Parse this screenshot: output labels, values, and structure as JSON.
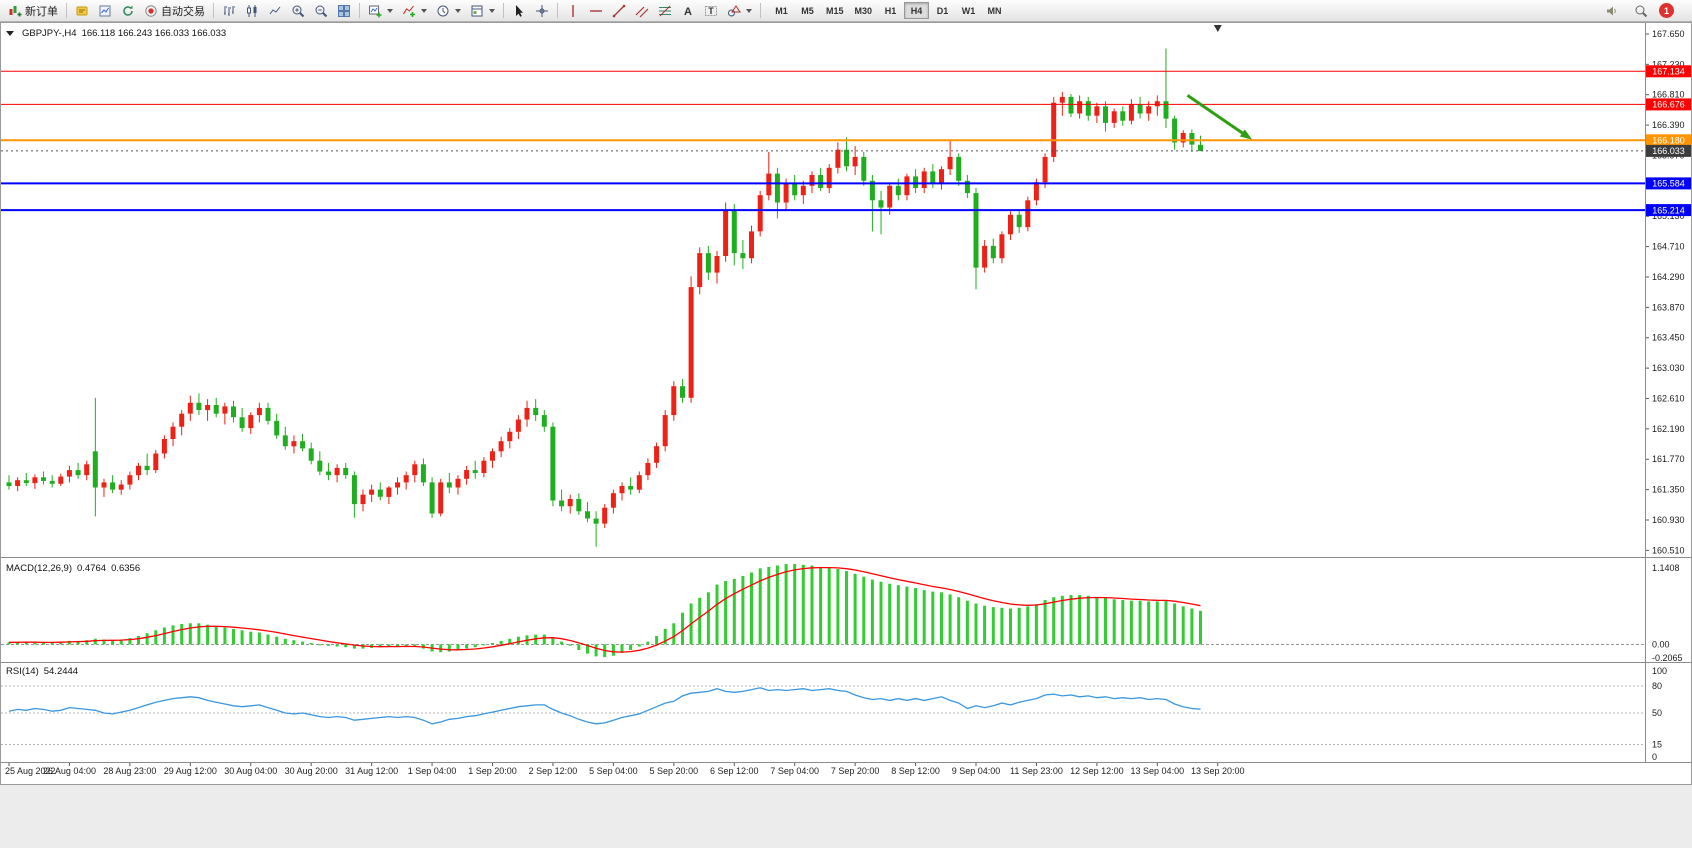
{
  "toolbar": {
    "new_order_label": "新订单",
    "auto_trading_label": "自动交易",
    "timeframes": [
      "M1",
      "M5",
      "M15",
      "M30",
      "H1",
      "H4",
      "D1",
      "W1",
      "MN"
    ],
    "active_timeframe": "H4",
    "notification_count": "1"
  },
  "chart_data": {
    "type": "candlestick",
    "header_symbol": "GBPJPY-,H4",
    "header_ohlc": "166.118 166.243 166.033 166.033",
    "ylim": [
      160.46,
      167.76
    ],
    "price_ticks": [
      167.65,
      167.23,
      166.81,
      166.39,
      165.97,
      165.55,
      165.13,
      164.71,
      164.29,
      163.87,
      163.45,
      163.03,
      162.61,
      162.19,
      161.77,
      161.35,
      160.93,
      160.51
    ],
    "time_labels": [
      "25 Aug 2022",
      "26 Aug 04:00",
      "28 Aug 23:00",
      "29 Aug 12:00",
      "30 Aug 04:00",
      "30 Aug 20:00",
      "31 Aug 12:00",
      "1 Sep 04:00",
      "1 Sep 20:00",
      "2 Sep 12:00",
      "5 Sep 04:00",
      "5 Sep 20:00",
      "6 Sep 12:00",
      "7 Sep 04:00",
      "7 Sep 20:00",
      "8 Sep 12:00",
      "9 Sep 04:00",
      "11 Sep 23:00",
      "12 Sep 12:00",
      "13 Sep 04:00",
      "13 Sep 20:00"
    ],
    "label_every_bars": 7,
    "up_color": "#ee2116",
    "down_color": "#1fae1f",
    "ohlc": [
      [
        161.45,
        161.55,
        161.35,
        161.4
      ],
      [
        161.4,
        161.52,
        161.33,
        161.48
      ],
      [
        161.48,
        161.58,
        161.4,
        161.44
      ],
      [
        161.44,
        161.56,
        161.36,
        161.52
      ],
      [
        161.52,
        161.6,
        161.42,
        161.47
      ],
      [
        161.47,
        161.55,
        161.38,
        161.43
      ],
      [
        161.43,
        161.57,
        161.4,
        161.53
      ],
      [
        161.53,
        161.68,
        161.45,
        161.62
      ],
      [
        161.62,
        161.72,
        161.5,
        161.55
      ],
      [
        161.55,
        161.75,
        161.48,
        161.7
      ],
      [
        161.88,
        162.62,
        160.98,
        161.38
      ],
      [
        161.38,
        161.5,
        161.25,
        161.45
      ],
      [
        161.45,
        161.55,
        161.3,
        161.35
      ],
      [
        161.35,
        161.48,
        161.28,
        161.42
      ],
      [
        161.42,
        161.6,
        161.35,
        161.55
      ],
      [
        161.55,
        161.72,
        161.48,
        161.68
      ],
      [
        161.68,
        161.85,
        161.55,
        161.62
      ],
      [
        161.62,
        161.9,
        161.58,
        161.85
      ],
      [
        161.85,
        162.1,
        161.78,
        162.05
      ],
      [
        162.05,
        162.28,
        161.95,
        162.22
      ],
      [
        162.22,
        162.45,
        162.1,
        162.4
      ],
      [
        162.4,
        162.65,
        162.3,
        162.55
      ],
      [
        162.55,
        162.68,
        162.38,
        162.45
      ],
      [
        162.45,
        162.6,
        162.3,
        162.52
      ],
      [
        162.52,
        162.62,
        162.35,
        162.4
      ],
      [
        162.4,
        162.55,
        162.25,
        162.5
      ],
      [
        162.5,
        162.58,
        162.28,
        162.35
      ],
      [
        162.35,
        162.48,
        162.15,
        162.2
      ],
      [
        162.2,
        162.42,
        162.12,
        162.38
      ],
      [
        162.38,
        162.55,
        162.28,
        162.48
      ],
      [
        162.48,
        162.55,
        162.25,
        162.3
      ],
      [
        162.3,
        162.4,
        162.05,
        162.1
      ],
      [
        162.1,
        162.22,
        161.9,
        161.95
      ],
      [
        161.95,
        162.1,
        161.85,
        162.02
      ],
      [
        162.02,
        162.12,
        161.88,
        161.92
      ],
      [
        161.92,
        162.0,
        161.7,
        161.75
      ],
      [
        161.75,
        161.88,
        161.55,
        161.6
      ],
      [
        161.6,
        161.72,
        161.48,
        161.55
      ],
      [
        161.55,
        161.7,
        161.45,
        161.65
      ],
      [
        161.65,
        161.72,
        161.5,
        161.55
      ],
      [
        161.55,
        161.6,
        160.96,
        161.15
      ],
      [
        161.15,
        161.35,
        161.05,
        161.28
      ],
      [
        161.28,
        161.42,
        161.18,
        161.35
      ],
      [
        161.35,
        161.45,
        161.2,
        161.25
      ],
      [
        161.25,
        161.4,
        161.15,
        161.38
      ],
      [
        161.38,
        161.52,
        161.28,
        161.45
      ],
      [
        161.45,
        161.6,
        161.35,
        161.55
      ],
      [
        161.55,
        161.75,
        161.45,
        161.7
      ],
      [
        161.7,
        161.78,
        161.4,
        161.45
      ],
      [
        161.45,
        161.52,
        160.96,
        161.02
      ],
      [
        161.02,
        161.5,
        160.98,
        161.45
      ],
      [
        161.45,
        161.58,
        161.3,
        161.38
      ],
      [
        161.38,
        161.55,
        161.28,
        161.5
      ],
      [
        161.5,
        161.68,
        161.42,
        161.62
      ],
      [
        161.62,
        161.75,
        161.5,
        161.58
      ],
      [
        161.58,
        161.8,
        161.52,
        161.75
      ],
      [
        161.75,
        161.92,
        161.65,
        161.88
      ],
      [
        161.88,
        162.08,
        161.8,
        162.02
      ],
      [
        162.02,
        162.2,
        161.92,
        162.15
      ],
      [
        162.15,
        162.38,
        162.05,
        162.32
      ],
      [
        162.32,
        162.58,
        162.22,
        162.48
      ],
      [
        162.48,
        162.6,
        162.3,
        162.38
      ],
      [
        162.38,
        162.45,
        162.15,
        162.22
      ],
      [
        162.22,
        162.28,
        161.12,
        161.2
      ],
      [
        161.2,
        161.35,
        161.05,
        161.12
      ],
      [
        161.12,
        161.28,
        161.02,
        161.22
      ],
      [
        161.22,
        161.3,
        161.0,
        161.05
      ],
      [
        161.05,
        161.18,
        160.9,
        160.95
      ],
      [
        160.95,
        161.05,
        160.56,
        160.88
      ],
      [
        160.88,
        161.15,
        160.82,
        161.1
      ],
      [
        161.1,
        161.35,
        161.02,
        161.3
      ],
      [
        161.3,
        161.45,
        161.2,
        161.4
      ],
      [
        161.4,
        161.52,
        161.28,
        161.35
      ],
      [
        161.35,
        161.6,
        161.3,
        161.55
      ],
      [
        161.55,
        161.78,
        161.48,
        161.72
      ],
      [
        161.72,
        162.0,
        161.65,
        161.95
      ],
      [
        161.95,
        162.45,
        161.88,
        162.38
      ],
      [
        162.38,
        162.85,
        162.3,
        162.78
      ],
      [
        162.78,
        162.88,
        162.55,
        162.62
      ],
      [
        162.62,
        164.3,
        162.55,
        164.15
      ],
      [
        164.15,
        164.7,
        164.05,
        164.62
      ],
      [
        164.62,
        164.72,
        164.25,
        164.35
      ],
      [
        164.35,
        164.65,
        164.2,
        164.58
      ],
      [
        164.58,
        165.32,
        164.5,
        165.22
      ],
      [
        165.22,
        165.3,
        164.45,
        164.62
      ],
      [
        164.62,
        164.8,
        164.4,
        164.55
      ],
      [
        164.55,
        165.0,
        164.48,
        164.92
      ],
      [
        164.92,
        165.48,
        164.85,
        165.42
      ],
      [
        165.42,
        166.02,
        165.35,
        165.72
      ],
      [
        165.72,
        165.8,
        165.1,
        165.32
      ],
      [
        165.32,
        165.65,
        165.22,
        165.58
      ],
      [
        165.58,
        165.7,
        165.35,
        165.42
      ],
      [
        165.42,
        165.62,
        165.3,
        165.55
      ],
      [
        165.55,
        165.75,
        165.45,
        165.7
      ],
      [
        165.7,
        165.8,
        165.48,
        165.52
      ],
      [
        165.52,
        165.85,
        165.45,
        165.8
      ],
      [
        165.8,
        166.15,
        165.72,
        166.05
      ],
      [
        166.05,
        166.22,
        165.75,
        165.82
      ],
      [
        165.82,
        166.1,
        165.7,
        165.95
      ],
      [
        165.95,
        166.02,
        165.55,
        165.62
      ],
      [
        165.62,
        165.7,
        164.92,
        165.35
      ],
      [
        165.35,
        165.48,
        164.88,
        165.25
      ],
      [
        165.25,
        165.6,
        165.15,
        165.55
      ],
      [
        165.55,
        165.65,
        165.35,
        165.42
      ],
      [
        165.42,
        165.72,
        165.35,
        165.68
      ],
      [
        165.68,
        165.78,
        165.45,
        165.52
      ],
      [
        165.52,
        165.8,
        165.45,
        165.75
      ],
      [
        165.75,
        165.85,
        165.52,
        165.58
      ],
      [
        165.58,
        165.82,
        165.5,
        165.78
      ],
      [
        165.78,
        166.18,
        165.7,
        165.95
      ],
      [
        165.95,
        166.0,
        165.55,
        165.62
      ],
      [
        165.62,
        165.7,
        165.38,
        165.45
      ],
      [
        165.45,
        165.52,
        164.12,
        164.42
      ],
      [
        164.42,
        164.8,
        164.35,
        164.72
      ],
      [
        164.72,
        164.82,
        164.48,
        164.55
      ],
      [
        164.55,
        164.92,
        164.48,
        164.88
      ],
      [
        164.88,
        165.2,
        164.8,
        165.15
      ],
      [
        165.15,
        165.22,
        164.9,
        164.98
      ],
      [
        164.98,
        165.4,
        164.92,
        165.35
      ],
      [
        165.35,
        165.65,
        165.28,
        165.6
      ],
      [
        165.6,
        166.0,
        165.52,
        165.95
      ],
      [
        165.95,
        166.78,
        165.88,
        166.7
      ],
      [
        166.7,
        166.85,
        166.52,
        166.78
      ],
      [
        166.78,
        166.82,
        166.5,
        166.55
      ],
      [
        166.55,
        166.8,
        166.48,
        166.72
      ],
      [
        166.72,
        166.78,
        166.45,
        166.52
      ],
      [
        166.52,
        166.7,
        166.42,
        166.65
      ],
      [
        166.65,
        166.72,
        166.3,
        166.42
      ],
      [
        166.42,
        166.62,
        166.35,
        166.58
      ],
      [
        166.58,
        166.65,
        166.38,
        166.45
      ],
      [
        166.45,
        166.75,
        166.4,
        166.68
      ],
      [
        166.68,
        166.78,
        166.48,
        166.55
      ],
      [
        166.55,
        166.72,
        166.45,
        166.65
      ],
      [
        166.65,
        166.8,
        166.52,
        166.72
      ],
      [
        166.72,
        167.45,
        166.35,
        166.48
      ],
      [
        166.48,
        166.52,
        166.05,
        166.15
      ],
      [
        166.15,
        166.32,
        166.08,
        166.28
      ],
      [
        166.28,
        166.33,
        166.02,
        166.12
      ],
      [
        166.118,
        166.243,
        166.033,
        166.033
      ]
    ],
    "levels": [
      {
        "price": 167.134,
        "color": "#ff0000",
        "width": 1
      },
      {
        "price": 166.676,
        "color": "#ff0000",
        "width": 1
      },
      {
        "price": 166.18,
        "color": "#ff9500",
        "width": 2
      },
      {
        "price": 165.584,
        "color": "#0000ff",
        "width": 2
      },
      {
        "price": 165.214,
        "color": "#0000ff",
        "width": 2
      }
    ],
    "current_price": 166.033,
    "current_price_badge": "#3c3c3c",
    "annotation_arrow": {
      "from_bar": 136.5,
      "from_price": 166.8,
      "to_bar": 143.6,
      "to_price": 166.22,
      "color": "#2f9e13"
    },
    "shift_marker_bar": 140,
    "macd": {
      "label": "MACD(12,26,9)",
      "value_main": "0.4764",
      "value_signal": "0.6356",
      "ylim": [
        -0.2065,
        1.1408
      ],
      "axis_labels": [
        "1.1408",
        "0.00",
        "-0.2065"
      ],
      "histogram_color": "#33cc33",
      "signal_color": "#ff0000",
      "values": [
        0.03,
        0.03,
        0.04,
        0.03,
        0.02,
        0.03,
        0.04,
        0.05,
        0.05,
        0.06,
        0.08,
        0.07,
        0.06,
        0.07,
        0.09,
        0.12,
        0.16,
        0.2,
        0.24,
        0.27,
        0.29,
        0.3,
        0.3,
        0.28,
        0.26,
        0.24,
        0.22,
        0.2,
        0.18,
        0.17,
        0.14,
        0.11,
        0.08,
        0.06,
        0.04,
        0.02,
        0.0,
        -0.02,
        -0.03,
        -0.04,
        -0.06,
        -0.06,
        -0.05,
        -0.04,
        -0.03,
        -0.03,
        -0.02,
        -0.03,
        -0.06,
        -0.1,
        -0.11,
        -0.1,
        -0.08,
        -0.06,
        -0.04,
        -0.01,
        0.02,
        0.05,
        0.08,
        0.11,
        0.13,
        0.14,
        0.14,
        0.1,
        0.04,
        -0.02,
        -0.08,
        -0.13,
        -0.17,
        -0.18,
        -0.16,
        -0.12,
        -0.08,
        -0.03,
        0.04,
        0.12,
        0.22,
        0.3,
        0.45,
        0.58,
        0.66,
        0.74,
        0.85,
        0.9,
        0.93,
        0.97,
        1.02,
        1.08,
        1.1,
        1.12,
        1.14,
        1.1408,
        1.13,
        1.12,
        1.1,
        1.09,
        1.07,
        1.04,
        1.0,
        0.96,
        0.92,
        0.89,
        0.86,
        0.84,
        0.82,
        0.8,
        0.77,
        0.75,
        0.74,
        0.71,
        0.67,
        0.62,
        0.58,
        0.55,
        0.53,
        0.52,
        0.51,
        0.52,
        0.54,
        0.57,
        0.63,
        0.67,
        0.69,
        0.7,
        0.7,
        0.69,
        0.67,
        0.66,
        0.64,
        0.63,
        0.62,
        0.62,
        0.61,
        0.61,
        0.62,
        0.58,
        0.54,
        0.51,
        0.4764
      ]
    },
    "rsi": {
      "label": "RSI(14)",
      "value": "54.2444",
      "ylim": [
        0,
        100
      ],
      "levels": [
        80,
        50,
        15
      ],
      "axis_labels": [
        100,
        80,
        50,
        15,
        0
      ],
      "line_color": "#3a97e0",
      "values": [
        52,
        54,
        53,
        55,
        54,
        52,
        53,
        56,
        55,
        54,
        53,
        50,
        49,
        51,
        53,
        56,
        59,
        62,
        64,
        66,
        67,
        68,
        67,
        64,
        62,
        60,
        58,
        57,
        58,
        59,
        56,
        53,
        50,
        49,
        50,
        48,
        46,
        45,
        46,
        45,
        42,
        43,
        44,
        45,
        46,
        45,
        46,
        45,
        42,
        38,
        40,
        43,
        44,
        46,
        47,
        49,
        51,
        53,
        55,
        57,
        58,
        59,
        59,
        54,
        50,
        47,
        43,
        40,
        38,
        39,
        42,
        45,
        47,
        49,
        53,
        57,
        61,
        63,
        69,
        72,
        73,
        74,
        77,
        74,
        73,
        74,
        76,
        78,
        75,
        76,
        75,
        76,
        77,
        75,
        76,
        77,
        75,
        74,
        70,
        67,
        65,
        66,
        64,
        66,
        64,
        66,
        64,
        66,
        68,
        64,
        61,
        55,
        58,
        56,
        58,
        61,
        59,
        62,
        64,
        66,
        70,
        71,
        69,
        70,
        68,
        69,
        67,
        68,
        66,
        67,
        66,
        67,
        65,
        66,
        65,
        60,
        57,
        55,
        54.2444
      ]
    }
  }
}
